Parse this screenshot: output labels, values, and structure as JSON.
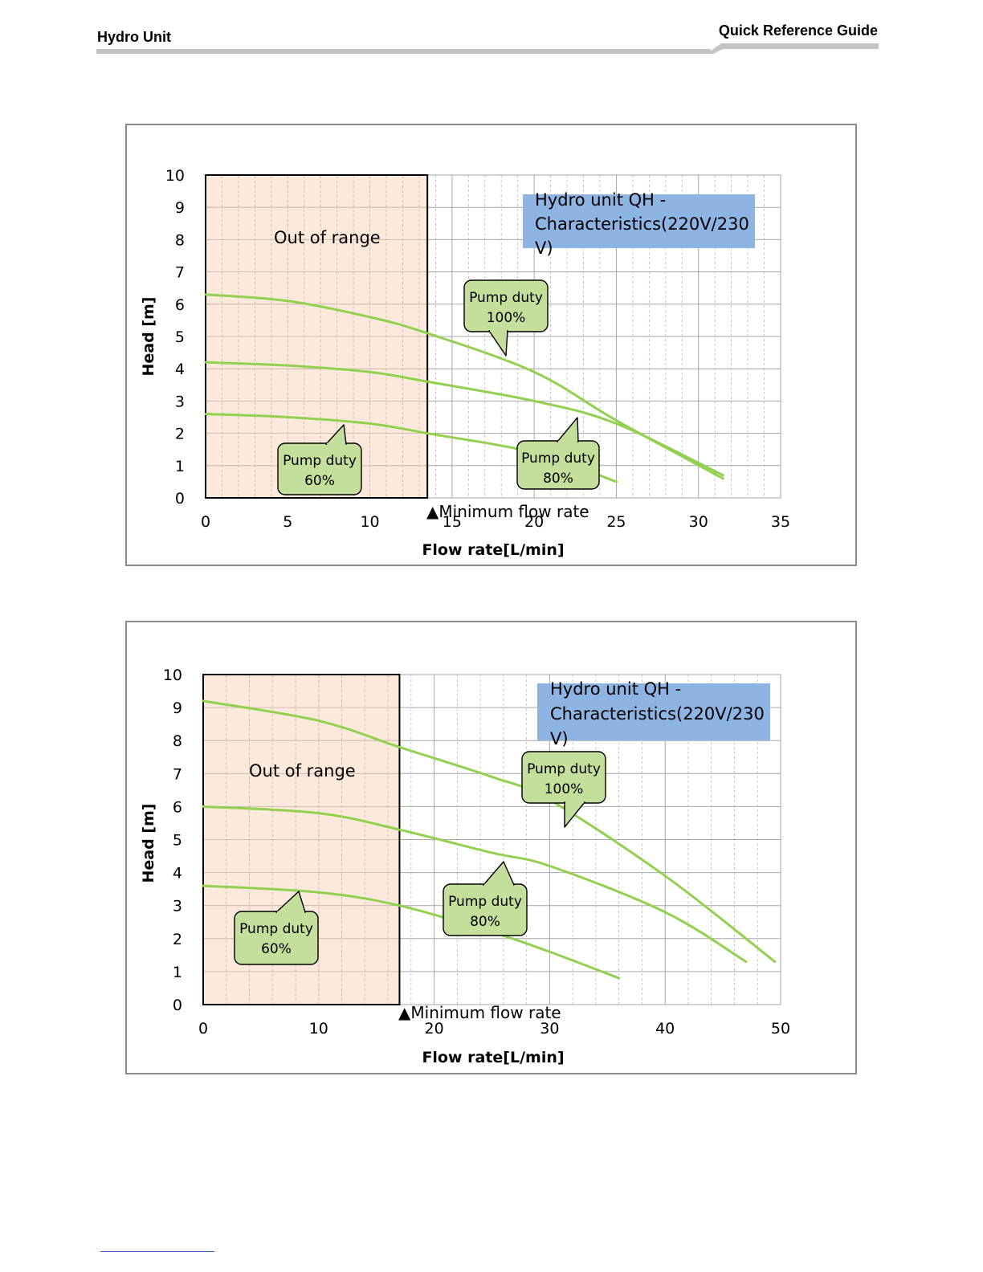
{
  "header": {
    "left_title": "Hydro Unit",
    "right_title": "Quick Reference Guide"
  },
  "chart_data": [
    {
      "type": "line",
      "title": "Hydro unit  QH -Characteristics(220V/230V)",
      "title_lines": [
        "Hydro unit  QH -",
        "Characteristics(220V/230",
        "V)"
      ],
      "xlabel": "Flow rate[L/min]",
      "ylabel": "Head  [m]",
      "xlim": [
        0,
        35
      ],
      "ylim": [
        0,
        10
      ],
      "xticks": [
        0,
        5,
        10,
        15,
        20,
        25,
        30,
        35
      ],
      "yticks": [
        0,
        1,
        2,
        3,
        4,
        5,
        6,
        7,
        8,
        9,
        10
      ],
      "grid": true,
      "out_of_range": {
        "x_max": 13.5,
        "label": "Out of range"
      },
      "min_flow": {
        "x": 13.5,
        "label": "▲Minimum flow rate"
      },
      "series": [
        {
          "name": "Pump duty 100%",
          "x": [
            0,
            5,
            10,
            13.5,
            20,
            25,
            31.5
          ],
          "y": [
            6.3,
            6.1,
            5.6,
            5.1,
            3.9,
            2.4,
            0.6
          ]
        },
        {
          "name": "Pump duty 80%",
          "x": [
            0,
            5,
            10,
            13.5,
            20,
            25,
            31.5
          ],
          "y": [
            4.2,
            4.1,
            3.9,
            3.6,
            3.0,
            2.3,
            0.7
          ]
        },
        {
          "name": "Pump duty 60%",
          "x": [
            0,
            5,
            10,
            13.5,
            20,
            25
          ],
          "y": [
            2.6,
            2.5,
            2.3,
            2.0,
            1.4,
            0.5
          ]
        }
      ],
      "callouts": [
        {
          "line1": "Pump  duty",
          "line2": "100%"
        },
        {
          "line1": "Pump  duty",
          "line2": "80%"
        },
        {
          "line1": "Pump  duty",
          "line2": "60%"
        }
      ],
      "colors": {
        "curve": "#92d050",
        "out_of_range": "#fbe5d6",
        "title_box": "#8eb4e3",
        "callout": "#c4df9b"
      }
    },
    {
      "type": "line",
      "title": "Hydro unit  QH -Characteristics(220V/230V)",
      "title_lines": [
        "Hydro unit  QH -",
        "Characteristics(220V/230",
        "V)"
      ],
      "xlabel": "Flow rate[L/min]",
      "ylabel": "Head  [m]",
      "xlim": [
        0,
        50
      ],
      "ylim": [
        0,
        10
      ],
      "xticks": [
        0,
        10,
        20,
        30,
        40,
        50
      ],
      "yticks": [
        0,
        1,
        2,
        3,
        4,
        5,
        6,
        7,
        8,
        9,
        10
      ],
      "grid": true,
      "out_of_range": {
        "x_max": 17,
        "label": "Out of range"
      },
      "min_flow": {
        "x": 17,
        "label": "▲Minimum flow rate"
      },
      "series": [
        {
          "name": "Pump duty 100%",
          "x": [
            0,
            10,
            17,
            25,
            30,
            40,
            49.5
          ],
          "y": [
            9.2,
            8.6,
            7.8,
            6.9,
            6.2,
            3.9,
            1.3
          ]
        },
        {
          "name": "Pump duty 80%",
          "x": [
            0,
            10,
            17,
            25,
            30,
            40,
            47
          ],
          "y": [
            6.0,
            5.8,
            5.3,
            4.6,
            4.2,
            2.8,
            1.3
          ]
        },
        {
          "name": "Pump duty 60%",
          "x": [
            0,
            10,
            17,
            25,
            30,
            36
          ],
          "y": [
            3.6,
            3.4,
            3.0,
            2.2,
            1.6,
            0.8
          ]
        }
      ],
      "callouts": [
        {
          "line1": "Pump  duty",
          "line2": "100%"
        },
        {
          "line1": "Pump  duty",
          "line2": "80%"
        },
        {
          "line1": "Pump  duty",
          "line2": "60%"
        }
      ],
      "colors": {
        "curve": "#92d050",
        "out_of_range": "#fbe5d6",
        "title_box": "#8eb4e3",
        "callout": "#c4df9b"
      }
    }
  ]
}
